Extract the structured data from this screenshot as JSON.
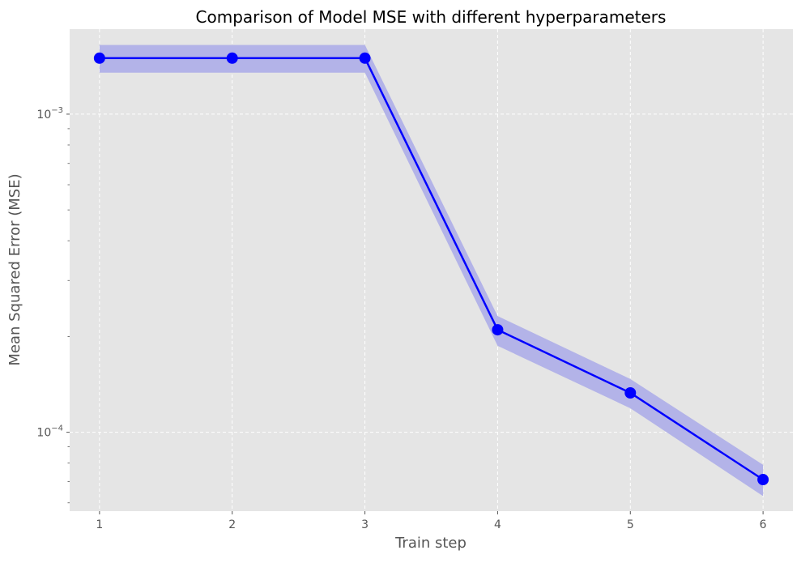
{
  "chart_data": {
    "type": "line",
    "title": "Comparison of Model MSE with different hyperparameters",
    "xlabel": "Train step",
    "ylabel": "Mean Squared Error (MSE)",
    "x_ticks": [
      "1",
      "2",
      "3",
      "4",
      "5",
      "6"
    ],
    "y_scale": "log",
    "y_ticks": [
      {
        "value": 0.001,
        "base": "10",
        "exp": "−3"
      },
      {
        "value": 0.0001,
        "base": "10",
        "exp": "−4"
      }
    ],
    "xlim": [
      0.775,
      6.225
    ],
    "ylim": [
      5.65e-05,
      0.00185
    ],
    "grid": true,
    "series": [
      {
        "x": [
          1,
          2,
          3,
          4,
          5,
          6
        ],
        "y": [
          0.0015,
          0.0015,
          0.0015,
          0.00021,
          0.000133,
          7.1e-05
        ],
        "band_upper": [
          0.00165,
          0.00165,
          0.00165,
          0.000232,
          0.000147,
          7.9e-05
        ],
        "band_lower": [
          0.00135,
          0.00135,
          0.00135,
          0.000187,
          0.000119,
          6.3e-05
        ],
        "color": "#0000ff",
        "band_color": "#b3b3e8"
      }
    ],
    "colors": {
      "plot_background": "#e5e5e5",
      "grid": "#ffffff",
      "axis_text": "#555555"
    }
  }
}
